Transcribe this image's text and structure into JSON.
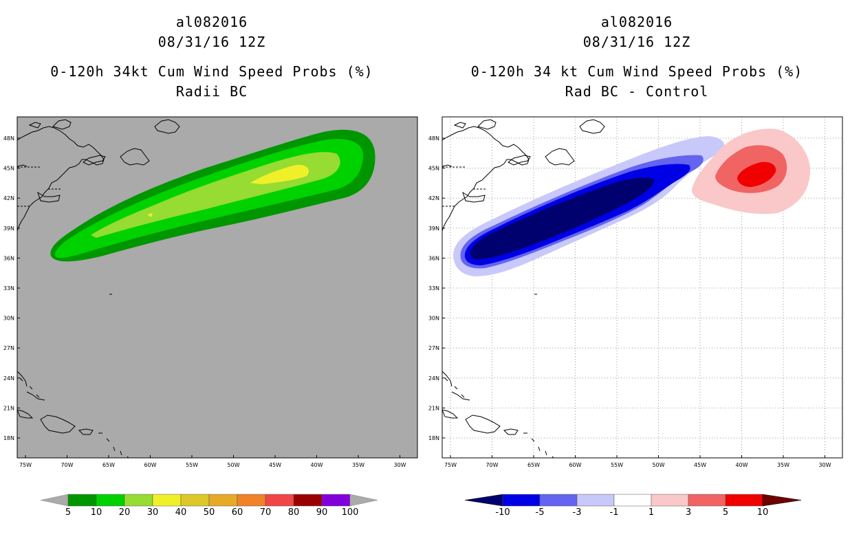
{
  "left": {
    "title_lines": [
      "al082016",
      "08/31/16 12Z",
      "0-120h 34kt Cum Wind Speed Probs (%)",
      "Radii BC"
    ],
    "background_color": "#aaaaaa",
    "lat_labels": [
      "48N",
      "45N",
      "42N",
      "39N",
      "36N",
      "33N",
      "30N",
      "27N",
      "24N",
      "21N",
      "18N"
    ],
    "lon_labels": [
      "75W",
      "70W",
      "65W",
      "60W",
      "55W",
      "50W",
      "45W",
      "40W",
      "35W",
      "30W"
    ],
    "colorbar": {
      "labels": [
        "5",
        "10",
        "20",
        "30",
        "40",
        "50",
        "60",
        "70",
        "80",
        "90",
        "100"
      ],
      "colors": [
        "#009600",
        "#00d200",
        "#96dc32",
        "#f0f028",
        "#dcc828",
        "#e6aa28",
        "#f08228",
        "#f04646",
        "#9b0000",
        "#8200dc"
      ],
      "end_color": "#aaaaaa"
    },
    "contours": [
      {
        "level": "5",
        "color": "#009600"
      },
      {
        "level": "10",
        "color": "#00d200"
      },
      {
        "level": "20",
        "color": "#96dc32"
      },
      {
        "level": "30",
        "color": "#f0f028"
      }
    ]
  },
  "right": {
    "title_lines": [
      "al082016",
      "08/31/16 12Z",
      "0-120h 34 kt Cum Wind Speed Probs (%)",
      "Rad BC - Control"
    ],
    "background_color": "#ffffff",
    "lat_labels": [
      "48N",
      "45N",
      "42N",
      "39N",
      "36N",
      "33N",
      "30N",
      "27N",
      "24N",
      "21N",
      "18N"
    ],
    "lon_labels": [
      "75W",
      "70W",
      "65W",
      "60W",
      "55W",
      "50W",
      "45W",
      "40W",
      "35W",
      "30W"
    ],
    "colorbar": {
      "labels": [
        "-10",
        "-5",
        "-3",
        "-1",
        "1",
        "3",
        "5",
        "10"
      ],
      "colors": [
        "#0000e6",
        "#6464f0",
        "#c8c8fa",
        "#ffffff",
        "#fac8c8",
        "#f06464",
        "#f00000"
      ],
      "low_end_color": "#00006e",
      "high_end_color": "#6e0000"
    },
    "contours_negative": [
      {
        "level": "-1",
        "color": "#c8c8fa"
      },
      {
        "level": "-3",
        "color": "#6464f0"
      },
      {
        "level": "-5",
        "color": "#0000e6"
      },
      {
        "level": "-10",
        "color": "#00006e"
      }
    ],
    "contours_positive": [
      {
        "level": "1",
        "color": "#fac8c8"
      },
      {
        "level": "3",
        "color": "#f06464"
      },
      {
        "level": "5",
        "color": "#f00000"
      }
    ]
  }
}
